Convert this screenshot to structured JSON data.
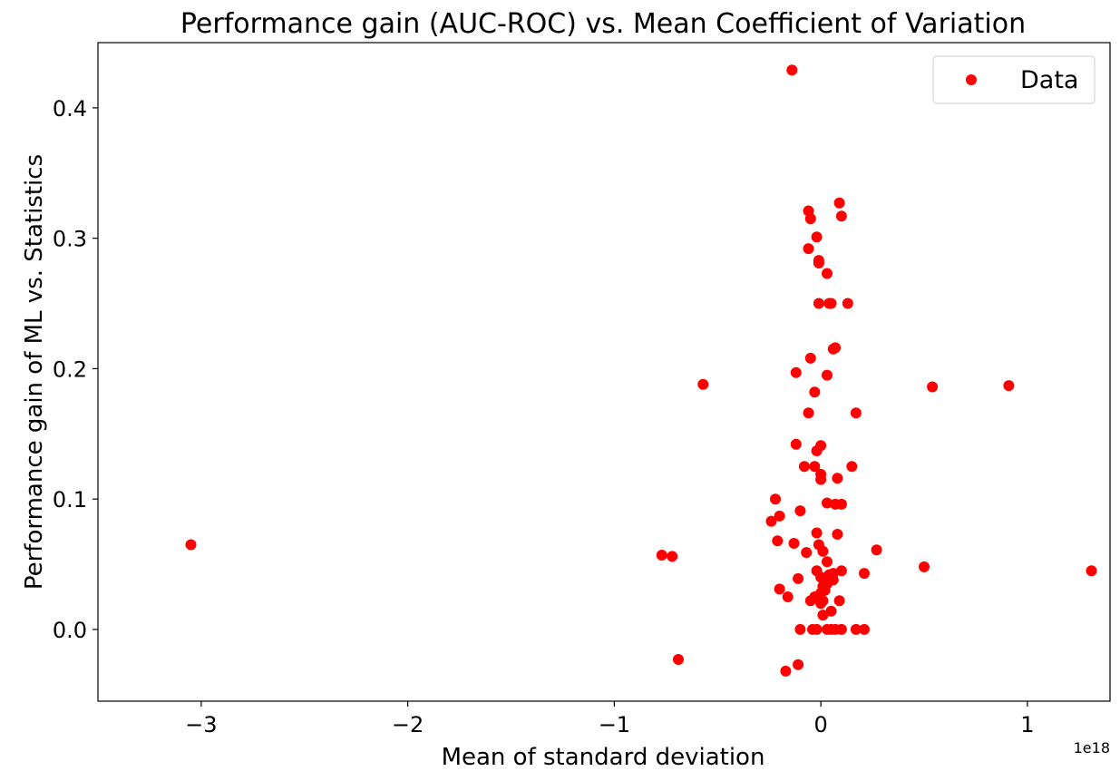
{
  "chart_data": {
    "type": "scatter",
    "title": "Performance gain (AUC-ROC) vs. Mean Coefficient of Variation",
    "xlabel": "Mean of standard deviation",
    "ylabel": "Performance gain of ML vs. Statistics",
    "x_offset_label": "1e18",
    "xlim": [
      -3.5,
      1.4
    ],
    "ylim": [
      -0.055,
      0.45
    ],
    "x_ticks": [
      -3,
      -2,
      -1,
      0,
      1
    ],
    "x_tick_labels": [
      "−3",
      "−2",
      "−1",
      "0",
      "1"
    ],
    "y_ticks": [
      0.0,
      0.1,
      0.2,
      0.3,
      0.4
    ],
    "y_tick_labels": [
      "0.0",
      "0.1",
      "0.2",
      "0.3",
      "0.4"
    ],
    "grid": false,
    "legend": {
      "position": "top-right",
      "entries": [
        "Data"
      ]
    },
    "series": [
      {
        "name": "Data",
        "color": "#ff0000",
        "marker": "circle",
        "points": [
          [
            -3.05,
            0.065
          ],
          [
            -0.77,
            0.057
          ],
          [
            -0.72,
            0.056
          ],
          [
            -0.69,
            -0.023
          ],
          [
            -0.57,
            0.188
          ],
          [
            -0.14,
            0.429
          ],
          [
            -0.06,
            0.321
          ],
          [
            -0.05,
            0.315
          ],
          [
            -0.06,
            0.292
          ],
          [
            -0.02,
            0.301
          ],
          [
            -0.01,
            0.283
          ],
          [
            -0.01,
            0.281
          ],
          [
            0.03,
            0.273
          ],
          [
            -0.01,
            0.25
          ],
          [
            0.04,
            0.25
          ],
          [
            0.05,
            0.25
          ],
          [
            0.13,
            0.25
          ],
          [
            0.09,
            0.327
          ],
          [
            0.1,
            0.317
          ],
          [
            0.06,
            0.215
          ],
          [
            0.07,
            0.216
          ],
          [
            -0.05,
            0.208
          ],
          [
            -0.12,
            0.197
          ],
          [
            0.03,
            0.195
          ],
          [
            -0.03,
            0.182
          ],
          [
            0.17,
            0.166
          ],
          [
            -0.06,
            0.166
          ],
          [
            -0.12,
            0.142
          ],
          [
            0.0,
            0.141
          ],
          [
            -0.02,
            0.137
          ],
          [
            -0.08,
            0.125
          ],
          [
            -0.03,
            0.125
          ],
          [
            0.15,
            0.125
          ],
          [
            0.0,
            0.119
          ],
          [
            0.0,
            0.115
          ],
          [
            0.08,
            0.116
          ],
          [
            -0.22,
            0.1
          ],
          [
            0.03,
            0.097
          ],
          [
            0.07,
            0.096
          ],
          [
            0.1,
            0.096
          ],
          [
            -0.1,
            0.091
          ],
          [
            -0.2,
            0.087
          ],
          [
            -0.24,
            0.083
          ],
          [
            -0.02,
            0.074
          ],
          [
            0.08,
            0.073
          ],
          [
            -0.21,
            0.068
          ],
          [
            -0.13,
            0.066
          ],
          [
            -0.01,
            0.065
          ],
          [
            0.01,
            0.06
          ],
          [
            -0.07,
            0.059
          ],
          [
            0.27,
            0.061
          ],
          [
            0.5,
            0.048
          ],
          [
            1.31,
            0.045
          ],
          [
            0.03,
            0.052
          ],
          [
            -0.02,
            0.045
          ],
          [
            0.1,
            0.045
          ],
          [
            0.06,
            0.043
          ],
          [
            0.21,
            0.043
          ],
          [
            0.04,
            0.042
          ],
          [
            0.0,
            0.04
          ],
          [
            -0.11,
            0.039
          ],
          [
            0.02,
            0.038
          ],
          [
            0.06,
            0.038
          ],
          [
            0.03,
            0.035
          ],
          [
            0.01,
            0.033
          ],
          [
            0.02,
            0.03
          ],
          [
            -0.2,
            0.031
          ],
          [
            0.0,
            0.028
          ],
          [
            -0.16,
            0.025
          ],
          [
            -0.03,
            0.025
          ],
          [
            -0.01,
            0.024
          ],
          [
            0.01,
            0.022
          ],
          [
            0.09,
            0.022
          ],
          [
            -0.05,
            0.022
          ],
          [
            0.0,
            0.02
          ],
          [
            0.05,
            0.014
          ],
          [
            0.01,
            0.011
          ],
          [
            -0.1,
            0.0
          ],
          [
            -0.04,
            0.0
          ],
          [
            -0.02,
            0.0
          ],
          [
            0.03,
            0.0
          ],
          [
            0.05,
            0.0
          ],
          [
            0.07,
            0.0
          ],
          [
            0.1,
            0.0
          ],
          [
            0.17,
            0.0
          ],
          [
            0.21,
            0.0
          ],
          [
            -0.11,
            -0.027
          ],
          [
            -0.17,
            -0.032
          ],
          [
            0.54,
            0.186
          ],
          [
            0.91,
            0.187
          ]
        ]
      }
    ]
  }
}
